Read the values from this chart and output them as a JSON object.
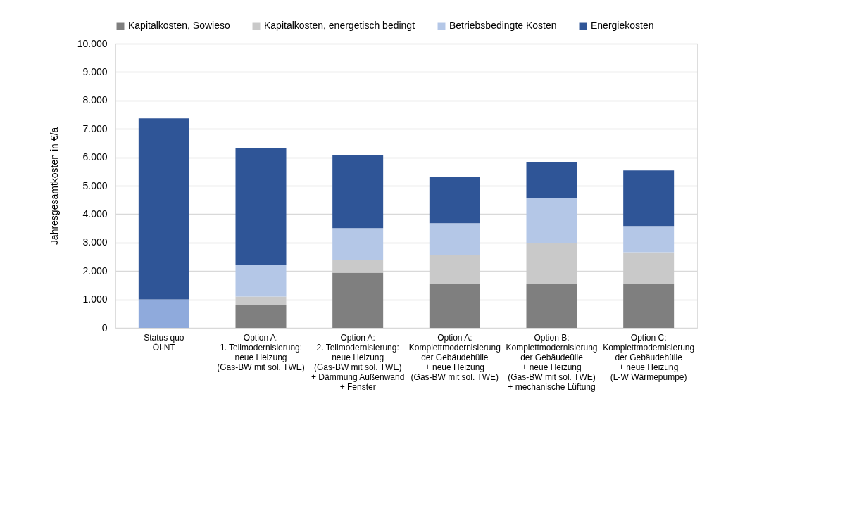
{
  "chart_data": {
    "type": "bar",
    "stacked": true,
    "ylabel": "Jahresgesamtkosten in €/a",
    "categories": [
      "Status quo\nÖl-NT",
      "Option A:\n1. Teilmodernisierung:\nneue Heizung\n(Gas-BW mit sol. TWE)",
      "Option A:\n2. Teilmodernisierung:\nneue Heizung\n(Gas-BW mit sol. TWE)\n+ Dämmung Außenwand\n+ Fenster",
      "Option A:\nKomplettmodernisierung\nder Gebäudehülle\n+ neue Heizung\n(Gas-BW mit sol. TWE)",
      "Option B:\nKomplettmodernisierung\nder Gebäudeülle\n+ neue Heizung\n(Gas-BW mit sol. TWE)\n+ mechanische Lüftung",
      "Option C:\nKomplettmodernisierung\nder Gebäudehülle\n+ neue Heizung\n(L-W Wärmepumpe)"
    ],
    "series": [
      {
        "name": "Kapitalkosten, Sowieso",
        "color": "#7f7f7f",
        "values": [
          0,
          810,
          1940,
          1560,
          1560,
          1560
        ]
      },
      {
        "name": "Kapitalkosten, energetisch bedingt",
        "color": "#c9c9c9",
        "values": [
          0,
          290,
          440,
          990,
          1430,
          1100
        ]
      },
      {
        "name": "Betriebsbedingte Kosten",
        "color": "#b4c7e7",
        "colors": [
          "#8faadc",
          "#b4c7e7",
          "#b4c7e7",
          "#b4c7e7",
          "#b4c7e7",
          "#b4c7e7"
        ],
        "values": [
          1000,
          1110,
          1130,
          1130,
          1570,
          920
        ]
      },
      {
        "name": "Energiekosten",
        "color": "#2f5597",
        "values": [
          6370,
          4120,
          2580,
          1620,
          1280,
          1960
        ]
      }
    ],
    "ylim": [
      0,
      10000
    ],
    "yticks": [
      {
        "value": 0,
        "label": "0"
      },
      {
        "value": 1000,
        "label": "1.000"
      },
      {
        "value": 2000,
        "label": "2.000"
      },
      {
        "value": 3000,
        "label": "3.000"
      },
      {
        "value": 4000,
        "label": "4.000"
      },
      {
        "value": 5000,
        "label": "5.000"
      },
      {
        "value": 6000,
        "label": "6.000"
      },
      {
        "value": 7000,
        "label": "7.000"
      },
      {
        "value": 8000,
        "label": "8.000"
      },
      {
        "value": 9000,
        "label": "9.000"
      },
      {
        "value": 10000,
        "label": "10.000"
      }
    ],
    "grid": "y",
    "legend": "top"
  }
}
